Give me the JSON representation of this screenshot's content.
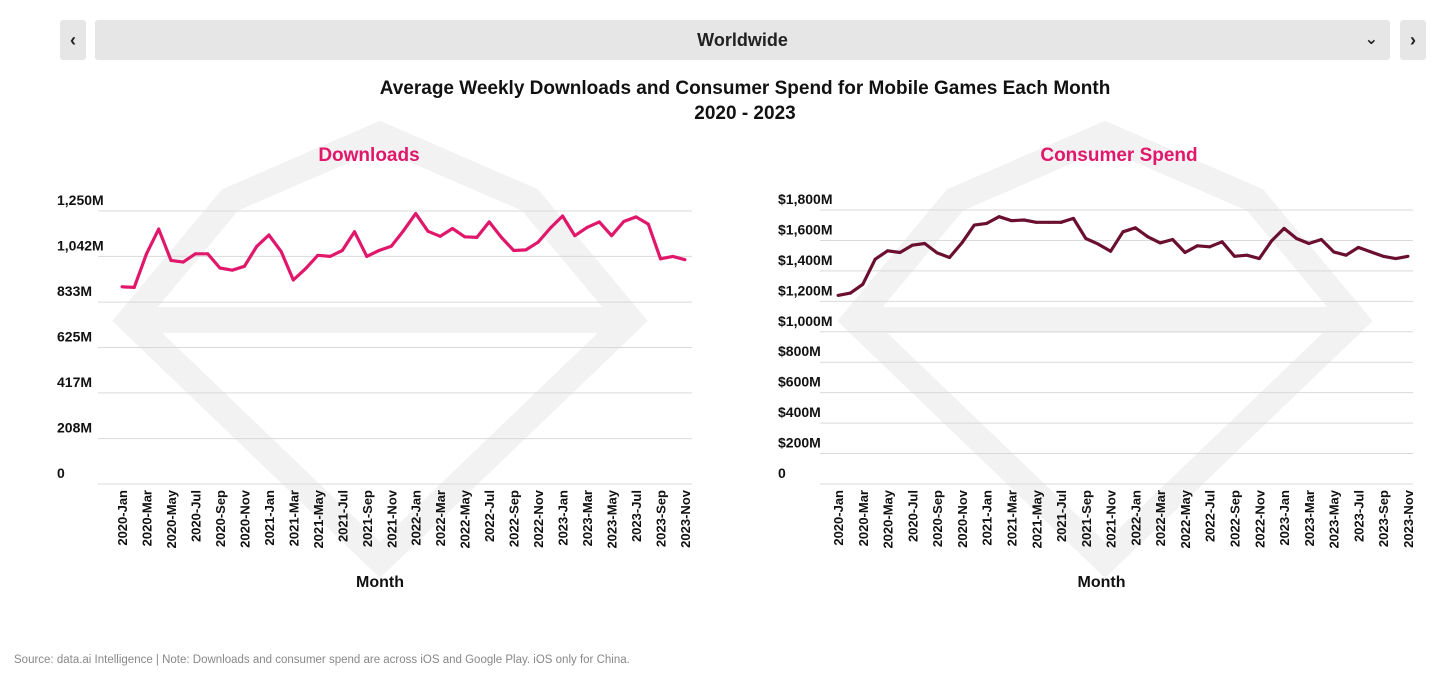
{
  "header": {
    "prev_icon": "chevron-left-icon",
    "next_icon": "chevron-right-icon",
    "dropdown_icon": "chevron-down-icon",
    "region": "Worldwide"
  },
  "title": "Average Weekly Downloads and Consumer Spend for Mobile Games Each Month",
  "subtitle": "2020 - 2023",
  "footer": "Source: data.ai Intelligence | Note: Downloads and consumer spend are across iOS and Google Play. iOS only for China.",
  "colors": {
    "downloads": "#e0176b",
    "spend": "#6b0f30",
    "grid": "#d9d9d9"
  },
  "chart_data": [
    {
      "type": "line",
      "title": "Downloads",
      "xlabel": "Month",
      "ylabel": "",
      "ylim": [
        0,
        1250
      ],
      "yticks": [
        0,
        208,
        417,
        625,
        833,
        1042,
        1250
      ],
      "ytick_labels": [
        "0",
        "208M",
        "417M",
        "625M",
        "833M",
        "1,042M",
        "1,250M"
      ],
      "grid": true,
      "xtick_labels": [
        "2020-Jan",
        "2020-Mar",
        "2020-May",
        "2020-Jul",
        "2020-Sep",
        "2020-Nov",
        "2021-Jan",
        "2021-Mar",
        "2021-May",
        "2021-Jul",
        "2021-Sep",
        "2021-Nov",
        "2022-Jan",
        "2022-Mar",
        "2022-May",
        "2022-Jul",
        "2022-Sep",
        "2022-Nov",
        "2023-Jan",
        "2023-Mar",
        "2023-May",
        "2023-Jul",
        "2023-Sep",
        "2023-Nov"
      ],
      "x": [
        "2020-Jan",
        "2020-Feb",
        "2020-Mar",
        "2020-Apr",
        "2020-May",
        "2020-Jun",
        "2020-Jul",
        "2020-Aug",
        "2020-Sep",
        "2020-Oct",
        "2020-Nov",
        "2020-Dec",
        "2021-Jan",
        "2021-Feb",
        "2021-Mar",
        "2021-Apr",
        "2021-May",
        "2021-Jun",
        "2021-Jul",
        "2021-Aug",
        "2021-Sep",
        "2021-Oct",
        "2021-Nov",
        "2021-Dec",
        "2022-Jan",
        "2022-Feb",
        "2022-Mar",
        "2022-Apr",
        "2022-May",
        "2022-Jun",
        "2022-Jul",
        "2022-Aug",
        "2022-Sep",
        "2022-Oct",
        "2022-Nov",
        "2022-Dec",
        "2023-Jan",
        "2023-Feb",
        "2023-Mar",
        "2023-Apr",
        "2023-May",
        "2023-Jun",
        "2023-Jul",
        "2023-Aug",
        "2023-Sep",
        "2023-Oct",
        "2023-Nov"
      ],
      "values": [
        903,
        900,
        1054,
        1167,
        1024,
        1016,
        1054,
        1054,
        989,
        979,
        997,
        1087,
        1140,
        1065,
        934,
        986,
        1047,
        1042,
        1069,
        1155,
        1042,
        1069,
        1089,
        1160,
        1238,
        1157,
        1134,
        1170,
        1132,
        1129,
        1200,
        1129,
        1069,
        1072,
        1107,
        1172,
        1227,
        1137,
        1175,
        1200,
        1137,
        1202,
        1223,
        1190,
        1031,
        1042,
        1027
      ]
    },
    {
      "type": "line",
      "title": "Consumer Spend",
      "xlabel": "Month",
      "ylabel": "",
      "ylim": [
        0,
        1800
      ],
      "yticks": [
        0,
        200,
        400,
        600,
        800,
        1000,
        1200,
        1400,
        1600,
        1800
      ],
      "ytick_labels": [
        "0",
        "$200M",
        "$400M",
        "$600M",
        "$800M",
        "$1,000M",
        "$1,200M",
        "$1,400M",
        "$1,600M",
        "$1,800M"
      ],
      "grid": true,
      "xtick_labels": [
        "2020-Jan",
        "2020-Mar",
        "2020-May",
        "2020-Jul",
        "2020-Sep",
        "2020-Nov",
        "2021-Jan",
        "2021-Mar",
        "2021-May",
        "2021-Jul",
        "2021-Sep",
        "2021-Nov",
        "2022-Jan",
        "2022-Mar",
        "2022-May",
        "2022-Jul",
        "2022-Sep",
        "2022-Nov",
        "2023-Jan",
        "2023-Mar",
        "2023-May",
        "2023-Jul",
        "2023-Sep",
        "2023-Nov"
      ],
      "x": [
        "2020-Jan",
        "2020-Feb",
        "2020-Mar",
        "2020-Apr",
        "2020-May",
        "2020-Jun",
        "2020-Jul",
        "2020-Aug",
        "2020-Sep",
        "2020-Oct",
        "2020-Nov",
        "2020-Dec",
        "2021-Jan",
        "2021-Feb",
        "2021-Mar",
        "2021-Apr",
        "2021-May",
        "2021-Jun",
        "2021-Jul",
        "2021-Aug",
        "2021-Sep",
        "2021-Oct",
        "2021-Nov",
        "2021-Dec",
        "2022-Jan",
        "2022-Feb",
        "2022-Mar",
        "2022-Apr",
        "2022-May",
        "2022-Jun",
        "2022-Jul",
        "2022-Aug",
        "2022-Sep",
        "2022-Oct",
        "2022-Nov",
        "2022-Dec",
        "2023-Jan",
        "2023-Feb",
        "2023-Mar",
        "2023-Apr",
        "2023-May",
        "2023-Jun",
        "2023-Jul",
        "2023-Aug",
        "2023-Sep",
        "2023-Oct",
        "2023-Nov"
      ],
      "values": [
        1239,
        1254,
        1312,
        1477,
        1532,
        1521,
        1569,
        1580,
        1518,
        1488,
        1584,
        1701,
        1712,
        1756,
        1730,
        1734,
        1719,
        1719,
        1719,
        1745,
        1613,
        1576,
        1529,
        1657,
        1683,
        1624,
        1584,
        1606,
        1521,
        1565,
        1558,
        1591,
        1496,
        1503,
        1481,
        1598,
        1679,
        1613,
        1580,
        1606,
        1525,
        1503,
        1554,
        1525,
        1496,
        1481,
        1496
      ]
    }
  ]
}
